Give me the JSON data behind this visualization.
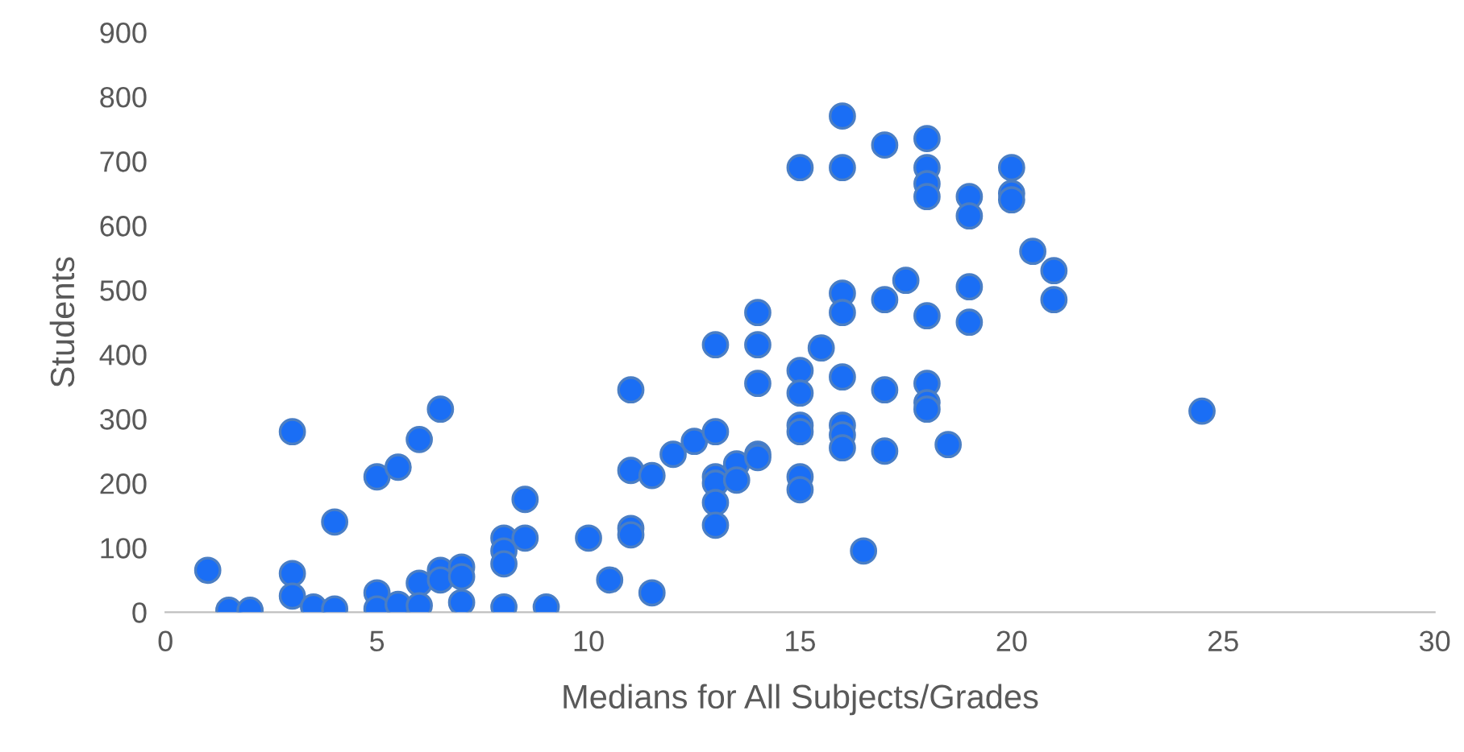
{
  "chart_data": {
    "type": "scatter",
    "xlabel": "Medians for All Subjects/Grades",
    "ylabel": "Students",
    "xlim": [
      0,
      30
    ],
    "xticks": [
      0,
      5,
      10,
      15,
      20,
      25,
      30
    ],
    "ylim": [
      0,
      900
    ],
    "yticks": [
      0,
      100,
      200,
      300,
      400,
      500,
      600,
      700,
      800,
      900
    ],
    "grid": false,
    "marker": "circle",
    "legend": false,
    "series": [
      {
        "color": "#1a6ef5",
        "x": [
          1,
          1.5,
          2,
          3,
          3,
          3,
          3.5,
          4,
          4,
          5,
          5,
          5,
          5.5,
          5.5,
          6,
          6,
          6,
          6.5,
          6.5,
          6.5,
          7,
          7,
          7,
          8,
          8,
          8,
          8,
          8.5,
          8.5,
          9,
          10,
          10.5,
          11,
          11,
          11,
          11,
          11.5,
          11.5,
          12,
          12.5,
          13,
          13,
          13,
          13,
          13,
          13,
          13.5,
          13.5,
          14,
          14,
          14,
          14,
          14,
          15,
          15,
          15,
          15,
          15,
          15,
          15,
          15.5,
          16,
          16,
          16,
          16,
          16,
          16,
          16,
          16,
          16.5,
          17,
          17,
          17,
          17,
          17.5,
          18,
          18,
          18,
          18,
          18,
          18,
          18,
          18,
          18.5,
          19,
          19,
          19,
          19,
          20,
          20,
          20,
          20.5,
          21,
          21,
          24.5
        ],
        "values": [
          65,
          3,
          3,
          280,
          60,
          25,
          8,
          5,
          140,
          210,
          30,
          5,
          225,
          12,
          268,
          45,
          10,
          315,
          65,
          50,
          70,
          55,
          15,
          115,
          95,
          75,
          8,
          175,
          115,
          8,
          115,
          50,
          345,
          220,
          130,
          120,
          212,
          30,
          245,
          265,
          415,
          280,
          210,
          200,
          170,
          135,
          230,
          205,
          465,
          415,
          355,
          245,
          240,
          690,
          375,
          340,
          290,
          280,
          210,
          190,
          410,
          770,
          690,
          495,
          465,
          365,
          290,
          275,
          255,
          95,
          725,
          485,
          345,
          250,
          515,
          735,
          690,
          665,
          645,
          460,
          355,
          325,
          315,
          260,
          645,
          615,
          505,
          450,
          690,
          650,
          640,
          560,
          530,
          485,
          312
        ]
      }
    ]
  }
}
